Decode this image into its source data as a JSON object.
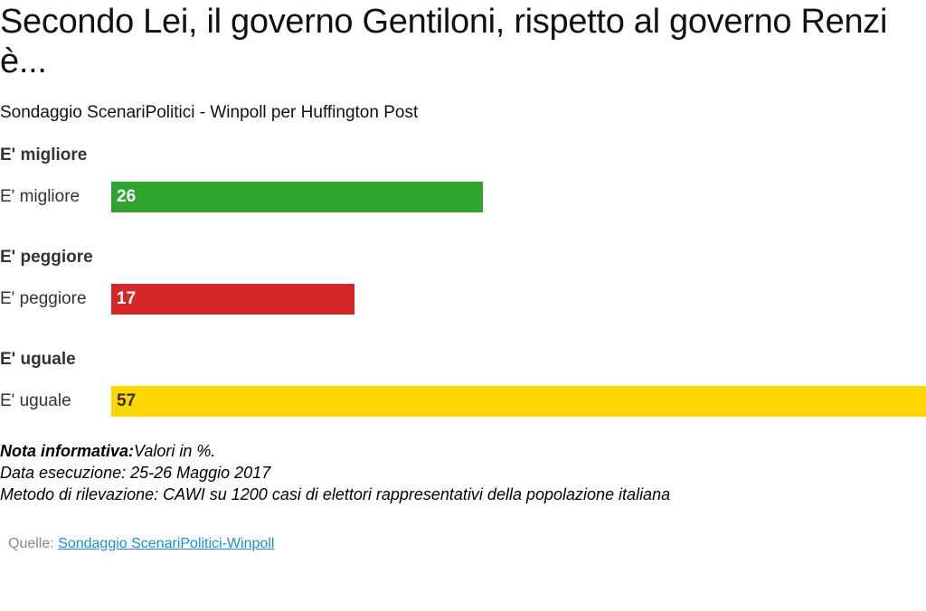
{
  "chart_data": {
    "type": "bar",
    "title": "Secondo Lei, il governo Gentiloni, rispetto al governo Renzi è...",
    "subtitle": "Sondaggio ScenariPolitici - Winpoll per Huffington Post",
    "orientation": "horizontal",
    "categories": [
      "E' migliore",
      "E' peggiore",
      "E' uguale"
    ],
    "values": [
      26,
      17,
      57
    ],
    "colors": [
      "#2ea32e",
      "#d62728",
      "#ffd700"
    ],
    "value_label_colors": [
      "#ffffff",
      "#ffffff",
      "#333333"
    ],
    "xlim": [
      0,
      57
    ],
    "grid": false,
    "legend": "none"
  },
  "notes": {
    "label": "Nota informativa:",
    "line1_rest": "Valori in %.",
    "line2": "Data esecuzione: 25-26 Maggio 2017",
    "line3": "Metodo di rilevazione: CAWI su 1200 casi di elettori rappresentativi della popolazione italiana"
  },
  "source": {
    "label": "Quelle:",
    "link_text": "Sondaggio ScenariPolitici-Winpoll"
  }
}
